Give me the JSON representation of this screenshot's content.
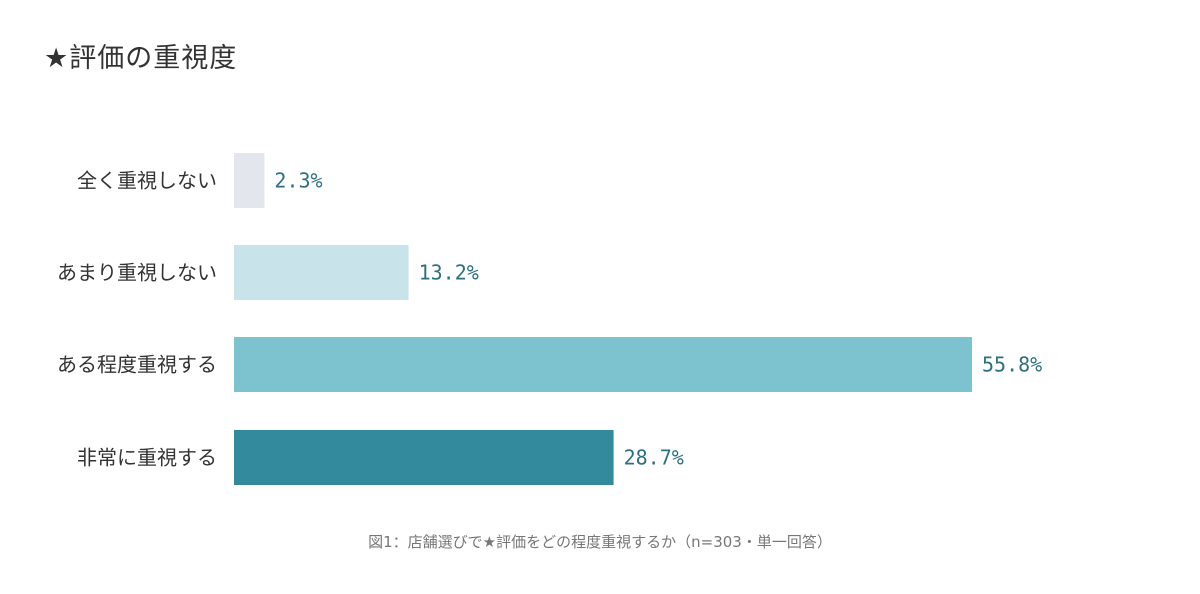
{
  "header": {
    "title": "★評価の重視度"
  },
  "chart_data": {
    "type": "bar",
    "orientation": "horizontal",
    "categories": [
      "全く重視しない",
      "あまり重視しない",
      "ある程度重視する",
      "非常に重視する"
    ],
    "values": [
      2.3,
      13.2,
      55.8,
      28.7
    ],
    "value_labels": [
      "2.3%",
      "13.2%",
      "55.8%",
      "28.7%"
    ],
    "unit": "%",
    "colors": [
      "#e3e6ec",
      "#c8e3ea",
      "#7cc3cf",
      "#338a9d"
    ],
    "xlim": [
      0,
      100
    ],
    "grid": false,
    "legend": "none"
  },
  "caption": "図1：店舗選びで★評価をどの程度重視するか（n=303・単一回答）"
}
